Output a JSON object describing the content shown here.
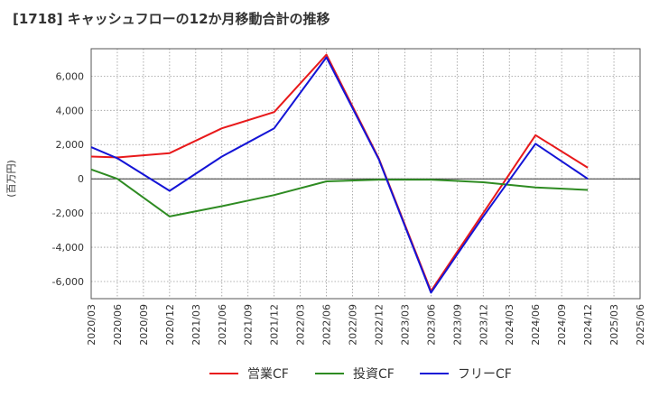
{
  "chart_data": {
    "type": "line",
    "title": "[1718]  キャッシュフローの12か月移動合計の推移",
    "ylabel": "(百万円)",
    "xlabel": "",
    "ylim": [
      -7000,
      7600
    ],
    "yticks": [
      -6000,
      -4000,
      -2000,
      0,
      2000,
      4000,
      6000
    ],
    "ytick_labels": [
      "-6,000",
      "-4,000",
      "-2,000",
      "0",
      "2,000",
      "4,000",
      "6,000"
    ],
    "categories": [
      "2020/03",
      "2020/06",
      "2020/09",
      "2020/12",
      "2021/03",
      "2021/06",
      "2021/09",
      "2021/12",
      "2022/03",
      "2022/06",
      "2022/09",
      "2022/12",
      "2023/03",
      "2023/06",
      "2023/09",
      "2023/12",
      "2024/03",
      "2024/06",
      "2024/09",
      "2024/12",
      "2025/03",
      "2025/06"
    ],
    "grid": true,
    "legend_position": "bottom",
    "series": [
      {
        "name": "営業CF",
        "color": "#e8191b",
        "values": [
          1300,
          1250,
          null,
          1500,
          null,
          2950,
          null,
          3900,
          null,
          7250,
          null,
          1200,
          null,
          -6550,
          null,
          -2000,
          null,
          2550,
          null,
          650,
          null,
          null
        ]
      },
      {
        "name": "投資CF",
        "color": "#2e8b22",
        "values": [
          550,
          0,
          null,
          -2200,
          null,
          -1600,
          null,
          -950,
          null,
          -150,
          null,
          -50,
          null,
          -50,
          null,
          -200,
          null,
          -500,
          null,
          -650,
          null,
          null
        ]
      },
      {
        "name": "フリーCF",
        "color": "#1414d6",
        "values": [
          1850,
          1200,
          null,
          -700,
          null,
          1300,
          null,
          2950,
          null,
          7100,
          null,
          1150,
          null,
          -6650,
          null,
          -2200,
          null,
          2050,
          null,
          0,
          null,
          null
        ]
      }
    ]
  }
}
